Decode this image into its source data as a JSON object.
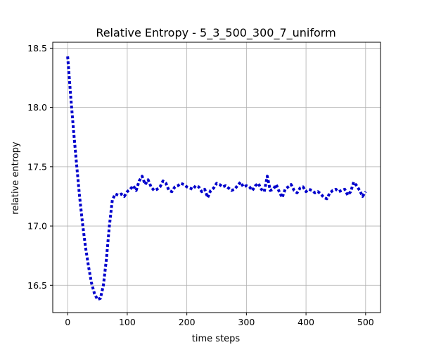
{
  "chart_data": {
    "type": "line",
    "title": "Relative Entropy - 5_3_500_300_7_uniform",
    "xlabel": "time steps",
    "ylabel": "relative entropy",
    "xlim": [
      -25,
      525
    ],
    "ylim": [
      16.27,
      18.55
    ],
    "xticks": [
      0,
      100,
      200,
      300,
      400,
      500
    ],
    "xtick_labels": [
      "0",
      "100",
      "200",
      "300",
      "400",
      "500"
    ],
    "yticks": [
      16.5,
      17.0,
      17.5,
      18.0,
      18.5
    ],
    "ytick_labels": [
      "16.5",
      "17.0",
      "17.5",
      "18.0",
      "18.5"
    ],
    "grid": true,
    "color": "#0000cc",
    "series": [
      {
        "line_style": "dotted",
        "x": [
          0,
          5,
          10,
          15,
          20,
          25,
          30,
          35,
          40,
          45,
          50,
          55,
          60,
          65,
          70,
          75,
          80,
          85,
          90,
          95,
          100,
          105,
          110,
          115,
          120,
          125,
          130,
          135,
          140,
          145,
          150,
          155,
          160,
          165,
          170,
          175,
          180,
          185,
          190,
          195,
          200,
          205,
          210,
          215,
          220,
          225,
          230,
          235,
          240,
          245,
          250,
          255,
          260,
          265,
          270,
          275,
          280,
          285,
          290,
          295,
          300,
          305,
          310,
          315,
          320,
          325,
          330,
          335,
          340,
          345,
          350,
          355,
          360,
          365,
          370,
          375,
          380,
          385,
          390,
          395,
          400,
          405,
          410,
          415,
          420,
          425,
          430,
          435,
          440,
          445,
          450,
          455,
          460,
          465,
          470,
          475,
          480,
          485,
          490,
          495,
          500
        ],
        "y": [
          18.43,
          18.1,
          17.8,
          17.52,
          17.25,
          17.02,
          16.82,
          16.66,
          16.52,
          16.43,
          16.38,
          16.39,
          16.5,
          16.72,
          17.0,
          17.22,
          17.27,
          17.26,
          17.27,
          17.25,
          17.29,
          17.31,
          17.34,
          17.3,
          17.38,
          17.42,
          17.35,
          17.39,
          17.33,
          17.3,
          17.31,
          17.33,
          17.38,
          17.36,
          17.3,
          17.29,
          17.33,
          17.34,
          17.36,
          17.35,
          17.33,
          17.32,
          17.31,
          17.34,
          17.33,
          17.29,
          17.31,
          17.24,
          17.3,
          17.32,
          17.36,
          17.35,
          17.33,
          17.34,
          17.32,
          17.3,
          17.31,
          17.34,
          17.37,
          17.33,
          17.34,
          17.33,
          17.3,
          17.34,
          17.36,
          17.31,
          17.29,
          17.42,
          17.3,
          17.31,
          17.35,
          17.29,
          17.24,
          17.31,
          17.33,
          17.35,
          17.3,
          17.28,
          17.32,
          17.33,
          17.29,
          17.31,
          17.3,
          17.28,
          17.29,
          17.27,
          17.24,
          17.23,
          17.28,
          17.3,
          17.31,
          17.29,
          17.3,
          17.31,
          17.26,
          17.29,
          17.37,
          17.34,
          17.3,
          17.25,
          17.29
        ]
      }
    ]
  }
}
